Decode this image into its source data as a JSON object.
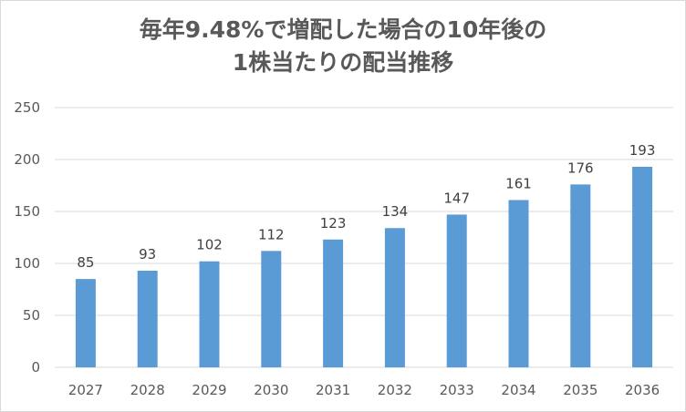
{
  "chart_data": {
    "type": "bar",
    "title_lines": [
      "毎年9.48%で増配した場合の10年後の",
      "1株当たりの配当推移"
    ],
    "categories": [
      "2027",
      "2028",
      "2029",
      "2030",
      "2031",
      "2032",
      "2033",
      "2034",
      "2035",
      "2036"
    ],
    "values": [
      85,
      93,
      102,
      112,
      123,
      134,
      147,
      161,
      176,
      193
    ],
    "ylim": [
      0,
      250
    ],
    "yticks": [
      0,
      50,
      100,
      150,
      200,
      250
    ],
    "grid": true,
    "bar_color": "#5B9BD5",
    "gridline_color": "#d9d9d9",
    "data_labels": true
  }
}
